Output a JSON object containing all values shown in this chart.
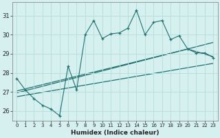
{
  "xlabel": "Humidex (Indice chaleur)",
  "bg_color": "#d6f0f0",
  "grid_color": "#b8dede",
  "line_color": "#1e7070",
  "xlim": [
    -0.5,
    23.5
  ],
  "ylim": [
    25.5,
    31.7
  ],
  "xticks": [
    0,
    1,
    2,
    3,
    4,
    5,
    6,
    7,
    8,
    9,
    10,
    11,
    12,
    13,
    14,
    15,
    16,
    17,
    18,
    19,
    20,
    21,
    22,
    23
  ],
  "yticks": [
    26,
    27,
    28,
    29,
    30,
    31
  ],
  "main_x": [
    0,
    1,
    2,
    3,
    4,
    5,
    6,
    7,
    8,
    9,
    10,
    11,
    12,
    13,
    14,
    15,
    16,
    17,
    18,
    19,
    20,
    21,
    22,
    23
  ],
  "main_y": [
    27.7,
    27.1,
    26.65,
    26.3,
    26.1,
    25.75,
    28.35,
    27.1,
    30.0,
    30.75,
    29.8,
    30.05,
    30.1,
    30.35,
    31.3,
    30.0,
    30.65,
    30.75,
    29.75,
    29.95,
    29.25,
    29.05,
    29.05,
    28.8
  ],
  "line1_x": [
    0,
    23
  ],
  "line1_y": [
    26.75,
    28.5
  ],
  "line2_x": [
    0,
    23
  ],
  "line2_y": [
    26.95,
    29.6
  ],
  "line3_x": [
    0,
    20,
    23
  ],
  "line3_y": [
    27.05,
    29.25,
    28.85
  ]
}
